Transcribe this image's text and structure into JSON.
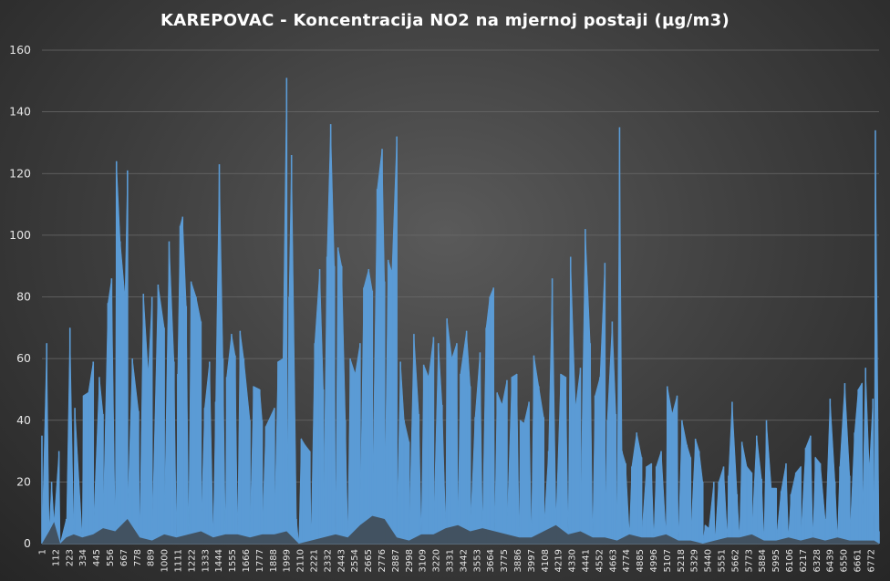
{
  "chart_data": {
    "type": "area",
    "title": "KAREPOVAC  - Koncentracija  NO2 na mjernoj  postaji  (µg/m3)",
    "xlabel": "",
    "ylabel": "",
    "ylim": [
      0,
      160
    ],
    "yticks": [
      0,
      20,
      40,
      60,
      80,
      100,
      120,
      140,
      160
    ],
    "grid": true,
    "legend": "none",
    "x_categories": [
      1,
      112,
      223,
      334,
      445,
      556,
      667,
      778,
      889,
      1000,
      1111,
      1222,
      1333,
      1444,
      1555,
      1666,
      1777,
      1888,
      1999,
      2110,
      2221,
      2332,
      2443,
      2554,
      2665,
      2776,
      2887,
      2998,
      3109,
      3220,
      3331,
      3442,
      3553,
      3664,
      3775,
      3886,
      3997,
      4108,
      4219,
      4330,
      4441,
      4552,
      4663,
      4774,
      4885,
      4996,
      5107,
      5218,
      5329,
      5440,
      5551,
      5662,
      5773,
      5884,
      5995,
      6106,
      6217,
      6328,
      6439,
      6550,
      6661,
      6772
    ],
    "x_max": 6840,
    "series": [
      {
        "color": "#5b9bd5",
        "peaks": [
          [
            1,
            35
          ],
          [
            40,
            65
          ],
          [
            80,
            20
          ],
          [
            140,
            30
          ],
          [
            200,
            8
          ],
          [
            230,
            70
          ],
          [
            270,
            44
          ],
          [
            340,
            48
          ],
          [
            380,
            49
          ],
          [
            420,
            59
          ],
          [
            470,
            54
          ],
          [
            500,
            42
          ],
          [
            540,
            78
          ],
          [
            570,
            86
          ],
          [
            610,
            124
          ],
          [
            640,
            98
          ],
          [
            680,
            80
          ],
          [
            700,
            121
          ],
          [
            740,
            60
          ],
          [
            790,
            43
          ],
          [
            830,
            81
          ],
          [
            870,
            55
          ],
          [
            900,
            80
          ],
          [
            950,
            84
          ],
          [
            1000,
            70
          ],
          [
            1040,
            98
          ],
          [
            1080,
            59
          ],
          [
            1110,
            55
          ],
          [
            1130,
            103
          ],
          [
            1150,
            106
          ],
          [
            1180,
            77
          ],
          [
            1220,
            85
          ],
          [
            1260,
            80
          ],
          [
            1300,
            72
          ],
          [
            1330,
            44
          ],
          [
            1370,
            59
          ],
          [
            1420,
            46
          ],
          [
            1450,
            123
          ],
          [
            1480,
            60
          ],
          [
            1510,
            54
          ],
          [
            1550,
            68
          ],
          [
            1580,
            61
          ],
          [
            1620,
            69
          ],
          [
            1650,
            60
          ],
          [
            1700,
            40
          ],
          [
            1730,
            51
          ],
          [
            1780,
            50
          ],
          [
            1800,
            40
          ],
          [
            1830,
            38
          ],
          [
            1900,
            44
          ],
          [
            1930,
            59
          ],
          [
            1970,
            60
          ],
          [
            2000,
            151
          ],
          [
            2020,
            80
          ],
          [
            2040,
            126
          ],
          [
            2080,
            8
          ],
          [
            2120,
            34
          ],
          [
            2150,
            32
          ],
          [
            2190,
            30
          ],
          [
            2230,
            65
          ],
          [
            2270,
            89
          ],
          [
            2300,
            50
          ],
          [
            2330,
            93
          ],
          [
            2360,
            136
          ],
          [
            2390,
            90
          ],
          [
            2420,
            96
          ],
          [
            2450,
            90
          ],
          [
            2480,
            40
          ],
          [
            2520,
            60
          ],
          [
            2560,
            55
          ],
          [
            2600,
            65
          ],
          [
            2630,
            83
          ],
          [
            2670,
            89
          ],
          [
            2700,
            82
          ],
          [
            2740,
            115
          ],
          [
            2780,
            128
          ],
          [
            2800,
            85
          ],
          [
            2830,
            92
          ],
          [
            2860,
            88
          ],
          [
            2900,
            132
          ],
          [
            2930,
            59
          ],
          [
            2960,
            40
          ],
          [
            3000,
            33
          ],
          [
            3040,
            68
          ],
          [
            3080,
            42
          ],
          [
            3120,
            58
          ],
          [
            3160,
            54
          ],
          [
            3200,
            67
          ],
          [
            3240,
            65
          ],
          [
            3270,
            45
          ],
          [
            3310,
            73
          ],
          [
            3350,
            60
          ],
          [
            3390,
            65
          ],
          [
            3420,
            55
          ],
          [
            3470,
            69
          ],
          [
            3500,
            51
          ],
          [
            3540,
            41
          ],
          [
            3580,
            62
          ],
          [
            3630,
            70
          ],
          [
            3660,
            80
          ],
          [
            3690,
            83
          ],
          [
            3720,
            49
          ],
          [
            3760,
            45
          ],
          [
            3800,
            53
          ],
          [
            3840,
            54
          ],
          [
            3880,
            55
          ],
          [
            3910,
            40
          ],
          [
            3940,
            39
          ],
          [
            3980,
            46
          ],
          [
            4020,
            61
          ],
          [
            4060,
            51
          ],
          [
            4100,
            41
          ],
          [
            4140,
            30
          ],
          [
            4170,
            86
          ],
          [
            4200,
            11
          ],
          [
            4240,
            55
          ],
          [
            4280,
            54
          ],
          [
            4320,
            93
          ],
          [
            4360,
            44
          ],
          [
            4400,
            57
          ],
          [
            4440,
            102
          ],
          [
            4480,
            65
          ],
          [
            4520,
            48
          ],
          [
            4560,
            54
          ],
          [
            4600,
            91
          ],
          [
            4620,
            40
          ],
          [
            4660,
            72
          ],
          [
            4690,
            42
          ],
          [
            4720,
            135
          ],
          [
            4740,
            30
          ],
          [
            4770,
            26
          ],
          [
            4820,
            25
          ],
          [
            4860,
            36
          ],
          [
            4900,
            28
          ],
          [
            4940,
            25
          ],
          [
            4980,
            26
          ],
          [
            5020,
            25
          ],
          [
            5060,
            30
          ],
          [
            5110,
            51
          ],
          [
            5150,
            42
          ],
          [
            5190,
            48
          ],
          [
            5230,
            40
          ],
          [
            5270,
            32
          ],
          [
            5300,
            28
          ],
          [
            5340,
            34
          ],
          [
            5370,
            30
          ],
          [
            5400,
            20
          ],
          [
            5420,
            6
          ],
          [
            5450,
            5
          ],
          [
            5490,
            20
          ],
          [
            5530,
            20
          ],
          [
            5570,
            25
          ],
          [
            5610,
            22
          ],
          [
            5640,
            46
          ],
          [
            5680,
            16
          ],
          [
            5720,
            33
          ],
          [
            5760,
            25
          ],
          [
            5800,
            23
          ],
          [
            5840,
            35
          ],
          [
            5880,
            21
          ],
          [
            5920,
            40
          ],
          [
            5960,
            18
          ],
          [
            6000,
            18
          ],
          [
            6040,
            17
          ],
          [
            6080,
            26
          ],
          [
            6120,
            16
          ],
          [
            6160,
            23
          ],
          [
            6200,
            25
          ],
          [
            6240,
            31
          ],
          [
            6280,
            35
          ],
          [
            6320,
            28
          ],
          [
            6360,
            26
          ],
          [
            6400,
            8
          ],
          [
            6440,
            47
          ],
          [
            6480,
            20
          ],
          [
            6520,
            25
          ],
          [
            6560,
            52
          ],
          [
            6600,
            22
          ],
          [
            6640,
            36
          ],
          [
            6670,
            50
          ],
          [
            6700,
            52
          ],
          [
            6730,
            57
          ],
          [
            6760,
            24
          ],
          [
            6790,
            47
          ],
          [
            6810,
            134
          ],
          [
            6840,
            4
          ]
        ],
        "troughs": [
          [
            1,
            0
          ],
          [
            60,
            4
          ],
          [
            100,
            7
          ],
          [
            150,
            0
          ],
          [
            200,
            2
          ],
          [
            260,
            3
          ],
          [
            330,
            2
          ],
          [
            420,
            3
          ],
          [
            500,
            5
          ],
          [
            600,
            4
          ],
          [
            700,
            8
          ],
          [
            800,
            2
          ],
          [
            900,
            1
          ],
          [
            1000,
            3
          ],
          [
            1100,
            2
          ],
          [
            1200,
            3
          ],
          [
            1300,
            4
          ],
          [
            1400,
            2
          ],
          [
            1500,
            3
          ],
          [
            1600,
            3
          ],
          [
            1700,
            2
          ],
          [
            1800,
            3
          ],
          [
            1900,
            3
          ],
          [
            2000,
            4
          ],
          [
            2100,
            0
          ],
          [
            2200,
            1
          ],
          [
            2300,
            2
          ],
          [
            2400,
            3
          ],
          [
            2500,
            2
          ],
          [
            2600,
            6
          ],
          [
            2700,
            9
          ],
          [
            2800,
            8
          ],
          [
            2900,
            2
          ],
          [
            3000,
            1
          ],
          [
            3100,
            3
          ],
          [
            3200,
            3
          ],
          [
            3300,
            5
          ],
          [
            3400,
            6
          ],
          [
            3500,
            4
          ],
          [
            3600,
            5
          ],
          [
            3700,
            4
          ],
          [
            3800,
            3
          ],
          [
            3900,
            2
          ],
          [
            4000,
            2
          ],
          [
            4100,
            4
          ],
          [
            4200,
            6
          ],
          [
            4300,
            3
          ],
          [
            4400,
            4
          ],
          [
            4500,
            2
          ],
          [
            4600,
            2
          ],
          [
            4700,
            1
          ],
          [
            4800,
            3
          ],
          [
            4900,
            2
          ],
          [
            5000,
            2
          ],
          [
            5100,
            3
          ],
          [
            5200,
            1
          ],
          [
            5300,
            1
          ],
          [
            5400,
            0
          ],
          [
            5500,
            1
          ],
          [
            5600,
            2
          ],
          [
            5700,
            2
          ],
          [
            5800,
            3
          ],
          [
            5900,
            1
          ],
          [
            6000,
            1
          ],
          [
            6100,
            2
          ],
          [
            6200,
            1
          ],
          [
            6300,
            2
          ],
          [
            6400,
            1
          ],
          [
            6500,
            2
          ],
          [
            6600,
            1
          ],
          [
            6700,
            1
          ],
          [
            6800,
            1
          ],
          [
            6840,
            0
          ]
        ]
      }
    ]
  }
}
